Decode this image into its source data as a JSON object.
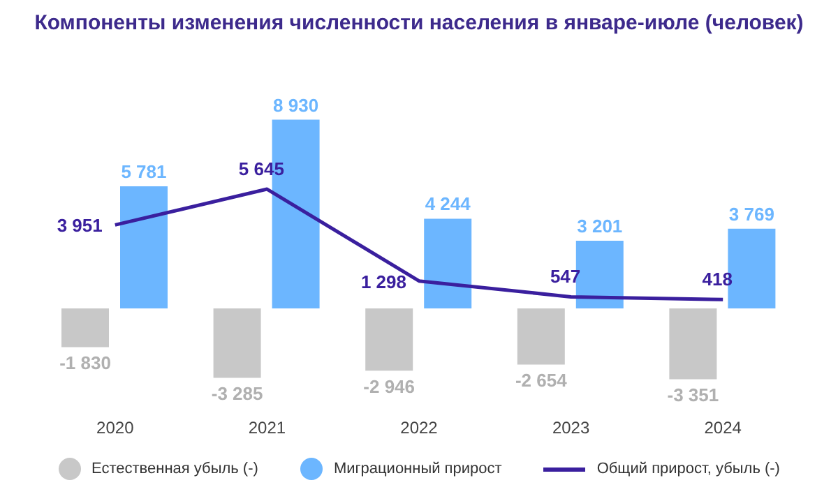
{
  "chart_data": {
    "type": "bar",
    "title": "Компоненты изменения численности населения в январе-июле (человек)",
    "categories": [
      "2020",
      "2021",
      "2022",
      "2023",
      "2024"
    ],
    "series": [
      {
        "name": "Естественная убыль (-)",
        "color": "#c8c8c8",
        "values": [
          -1830,
          -3285,
          -2946,
          -2654,
          -3351
        ]
      },
      {
        "name": "Миграционный прирост",
        "color": "#6cb6ff",
        "values": [
          5781,
          8930,
          4244,
          3201,
          3769
        ]
      },
      {
        "name": "Общий прирост, убыль (-)",
        "type": "line",
        "color": "#3a1f9e",
        "values": [
          3951,
          5645,
          1298,
          547,
          418
        ]
      }
    ],
    "data_labels": true,
    "legend": "bottom"
  }
}
